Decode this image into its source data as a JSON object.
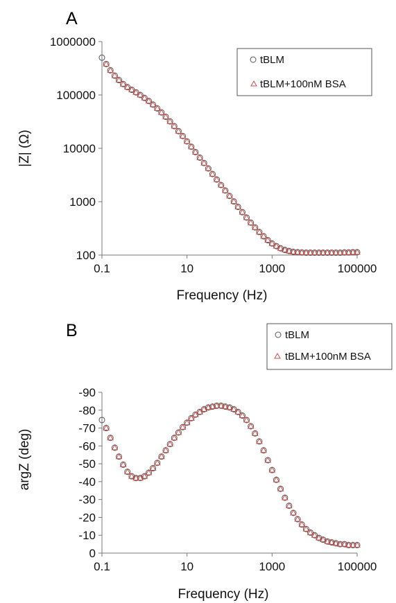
{
  "colors": {
    "tblm": "#555555",
    "bsa": "#c0504d",
    "axis": "#777777"
  },
  "chart_data": [
    {
      "type": "scatter",
      "panel_label": "A",
      "xlabel": "Frequency (Hz)",
      "ylabel": "|Z| (Ω)",
      "xscale": "log",
      "yscale": "log",
      "xlim": [
        0.1,
        100000
      ],
      "ylim": [
        100,
        1000000
      ],
      "xticks": [
        "0.1",
        "10",
        "1000",
        "100000"
      ],
      "yticks": [
        "100",
        "1000",
        "10000",
        "100000",
        "1000000"
      ],
      "legend_position": "top-right",
      "series": [
        {
          "name": "tBLM",
          "marker": "circle",
          "color": "#555555",
          "x": [
            0.1,
            0.126,
            0.158,
            0.2,
            0.251,
            0.316,
            0.398,
            0.501,
            0.631,
            0.794,
            1,
            1.26,
            1.58,
            2,
            2.51,
            3.16,
            3.98,
            5.01,
            6.31,
            7.94,
            10,
            12.6,
            15.8,
            20,
            25.1,
            31.6,
            39.8,
            50.1,
            63.1,
            79.4,
            100,
            126,
            158,
            200,
            251,
            316,
            398,
            501,
            631,
            794,
            1000,
            1260,
            1580,
            2000,
            2510,
            3160,
            3980,
            5010,
            6310,
            7940,
            10000,
            12600,
            15800,
            20000,
            25100,
            31600,
            39800,
            50100,
            63100,
            79400,
            100000
          ],
          "y": [
            500000,
            380000,
            290000,
            230000,
            190000,
            160000,
            140000,
            125000,
            112000,
            100000,
            88000,
            77000,
            66000,
            56000,
            47000,
            39000,
            32000,
            26000,
            21000,
            17000,
            13500,
            10700,
            8500,
            6700,
            5300,
            4200,
            3300,
            2600,
            2050,
            1620,
            1280,
            1010,
            800,
            635,
            505,
            405,
            330,
            270,
            225,
            190,
            165,
            147,
            134,
            125,
            119,
            115,
            113,
            112,
            111,
            111,
            111,
            111,
            111,
            111,
            111,
            111,
            111,
            112,
            112,
            113,
            113
          ]
        },
        {
          "name": "tBLM+100nM BSA",
          "marker": "triangle",
          "color": "#c0504d",
          "x": [
            0.126,
            0.158,
            0.2,
            0.251,
            0.316,
            0.398,
            0.501,
            0.631,
            0.794,
            1,
            1.26,
            1.58,
            2,
            2.51,
            3.16,
            3.98,
            5.01,
            6.31,
            7.94,
            10,
            12.6,
            15.8,
            20,
            25.1,
            31.6,
            39.8,
            50.1,
            63.1,
            79.4,
            100,
            126,
            158,
            200,
            251,
            316,
            398,
            501,
            631,
            794,
            1000,
            1260,
            1580,
            2000,
            2510,
            3160,
            3980,
            5010,
            6310,
            7940,
            10000,
            12600,
            15800,
            20000,
            25100,
            31600,
            39800,
            50100,
            63100,
            79400,
            100000
          ],
          "y": [
            380000,
            290000,
            230000,
            190000,
            160000,
            140000,
            125000,
            112000,
            100000,
            88000,
            77000,
            66000,
            56000,
            47000,
            39000,
            32000,
            26000,
            21000,
            17000,
            13500,
            10700,
            8500,
            6700,
            5300,
            4200,
            3300,
            2600,
            2050,
            1620,
            1280,
            1010,
            800,
            635,
            505,
            405,
            330,
            270,
            225,
            190,
            165,
            147,
            134,
            125,
            119,
            115,
            113,
            112,
            111,
            111,
            111,
            111,
            111,
            111,
            111,
            111,
            111,
            112,
            112,
            113,
            113
          ]
        }
      ]
    },
    {
      "type": "scatter",
      "panel_label": "B",
      "xlabel": "Frequency (Hz)",
      "ylabel": "argZ (deg)",
      "xscale": "log",
      "yscale": "linear",
      "y_inverted": true,
      "xlim": [
        0.1,
        100000
      ],
      "ylim": [
        0,
        -90
      ],
      "xticks": [
        "0.1",
        "10",
        "1000",
        "100000"
      ],
      "yticks": [
        "-90",
        "-80",
        "-70",
        "-60",
        "-50",
        "-40",
        "-30",
        "-20",
        "-10",
        "0"
      ],
      "legend_position": "top-right",
      "series": [
        {
          "name": "tBLM",
          "marker": "circle",
          "color": "#555555",
          "x": [
            0.1,
            0.126,
            0.158,
            0.2,
            0.251,
            0.316,
            0.398,
            0.501,
            0.631,
            0.794,
            1,
            1.26,
            1.58,
            2,
            2.51,
            3.16,
            3.98,
            5.01,
            6.31,
            7.94,
            10,
            12.6,
            15.8,
            20,
            25.1,
            31.6,
            39.8,
            50.1,
            63.1,
            79.4,
            100,
            126,
            158,
            200,
            251,
            316,
            398,
            501,
            631,
            794,
            1000,
            1260,
            1580,
            2000,
            2510,
            3160,
            3980,
            5010,
            6310,
            7940,
            10000,
            12600,
            15800,
            20000,
            25100,
            31600,
            39800,
            50100,
            63100,
            79400,
            100000
          ],
          "y": [
            -74.5,
            -70,
            -64.5,
            -59,
            -54,
            -49.5,
            -45.5,
            -43,
            -42,
            -42,
            -43,
            -45,
            -47.5,
            -50.5,
            -54,
            -57.5,
            -61,
            -64.5,
            -67.5,
            -70.5,
            -73,
            -75.5,
            -77.5,
            -79,
            -80.5,
            -81.5,
            -82,
            -82.5,
            -82.5,
            -82,
            -81.5,
            -80.5,
            -79,
            -77,
            -74.5,
            -71,
            -67,
            -62.5,
            -57.5,
            -52,
            -46.5,
            -41,
            -36,
            -31,
            -26.5,
            -22.5,
            -19,
            -16,
            -13.5,
            -11.5,
            -10,
            -8.5,
            -7.5,
            -6.5,
            -6,
            -5.5,
            -5,
            -5,
            -4.5,
            -4.5,
            -4.5
          ]
        },
        {
          "name": "tBLM+100nM BSA",
          "marker": "triangle",
          "color": "#c0504d",
          "x": [
            0.126,
            0.158,
            0.2,
            0.251,
            0.316,
            0.398,
            0.501,
            0.631,
            0.794,
            1,
            1.26,
            1.58,
            2,
            2.51,
            3.16,
            3.98,
            5.01,
            6.31,
            7.94,
            10,
            12.6,
            15.8,
            20,
            25.1,
            31.6,
            39.8,
            50.1,
            63.1,
            79.4,
            100,
            126,
            158,
            200,
            251,
            316,
            398,
            501,
            631,
            794,
            1000,
            1260,
            1580,
            2000,
            2510,
            3160,
            3980,
            5010,
            6310,
            7940,
            10000,
            12600,
            15800,
            20000,
            25100,
            31600,
            39800,
            50100,
            63100,
            79400,
            100000
          ],
          "y": [
            -70,
            -64.5,
            -59,
            -54,
            -49.5,
            -45.5,
            -43,
            -42,
            -42,
            -43,
            -45,
            -47.5,
            -50.5,
            -54,
            -57.5,
            -61,
            -64.5,
            -67.5,
            -70.5,
            -73,
            -75.5,
            -77.5,
            -79,
            -80.5,
            -81.5,
            -82,
            -82.5,
            -82.5,
            -82,
            -81.5,
            -80.5,
            -79,
            -77,
            -74.5,
            -71,
            -67,
            -62.5,
            -57.5,
            -52,
            -46.5,
            -41,
            -36,
            -31,
            -26.5,
            -22.5,
            -19,
            -16,
            -13.5,
            -11.5,
            -10,
            -8.5,
            -7.5,
            -6.5,
            -6,
            -5.5,
            -5,
            -5,
            -4.5,
            -4.5,
            -4.5
          ]
        }
      ]
    }
  ]
}
